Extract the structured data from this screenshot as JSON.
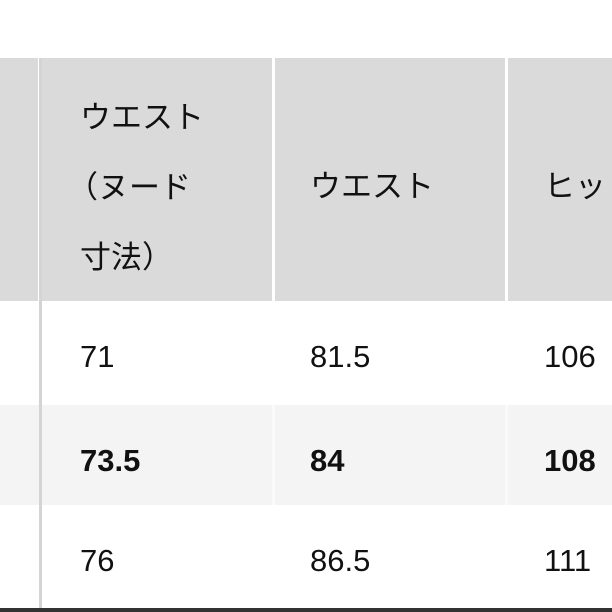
{
  "table": {
    "headers": [
      {
        "lines": [
          "ウエスト",
          "（ヌード",
          "寸法）"
        ]
      },
      {
        "lines": [
          "ウエスト"
        ]
      },
      {
        "lines": [
          "ヒッ"
        ]
      }
    ],
    "rows": [
      {
        "cells": [
          "71",
          "81.5",
          "106"
        ],
        "highlighted": false
      },
      {
        "cells": [
          "73.5",
          "84",
          "108"
        ],
        "highlighted": true
      },
      {
        "cells": [
          "76",
          "86.5",
          "111"
        ],
        "highlighted": false
      }
    ],
    "colors": {
      "header_bg": "#dadada",
      "highlight_row_bg": "#f4f4f4",
      "divider": "#d4d4d4"
    }
  }
}
